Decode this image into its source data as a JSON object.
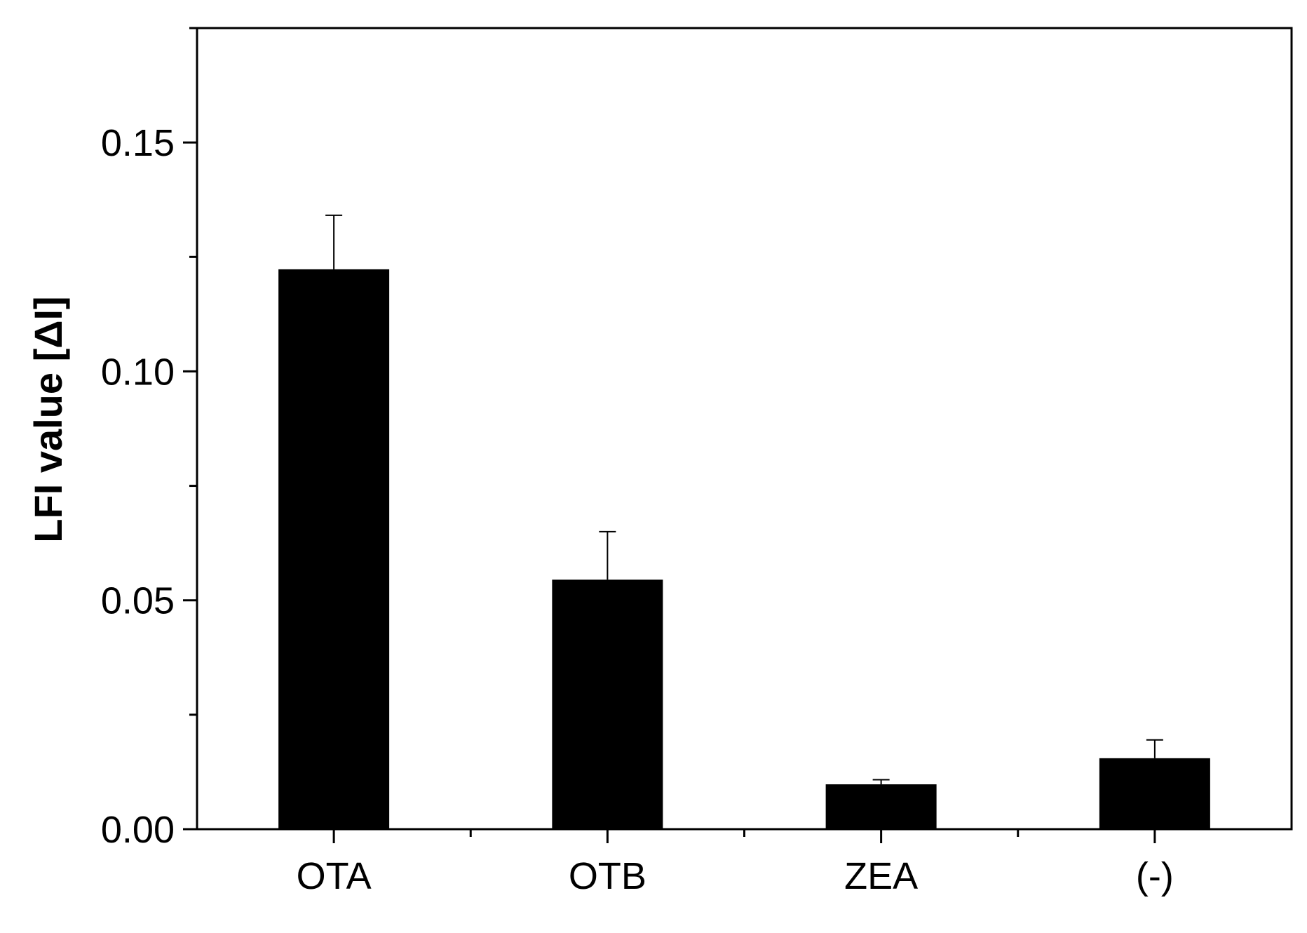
{
  "chart_data": {
    "type": "bar",
    "title": "",
    "xlabel": "",
    "ylabel": "LFI value [ΔI]",
    "categories": [
      "OTA",
      "OTB",
      "ZEA",
      "(-)"
    ],
    "values": [
      0.1223,
      0.0545,
      0.0098,
      0.0155
    ],
    "errors": [
      0.0118,
      0.0105,
      0.001,
      0.004
    ],
    "ylim": [
      0,
      0.175
    ],
    "yticks": [
      0.0,
      0.05,
      0.1,
      0.15
    ],
    "ytick_labels": [
      "0.00",
      "0.05",
      "0.10",
      "0.15"
    ],
    "y_minor_step": 0.025,
    "grid": false,
    "legend": "none",
    "bar_color": "#000000",
    "axis_color": "#000000"
  }
}
